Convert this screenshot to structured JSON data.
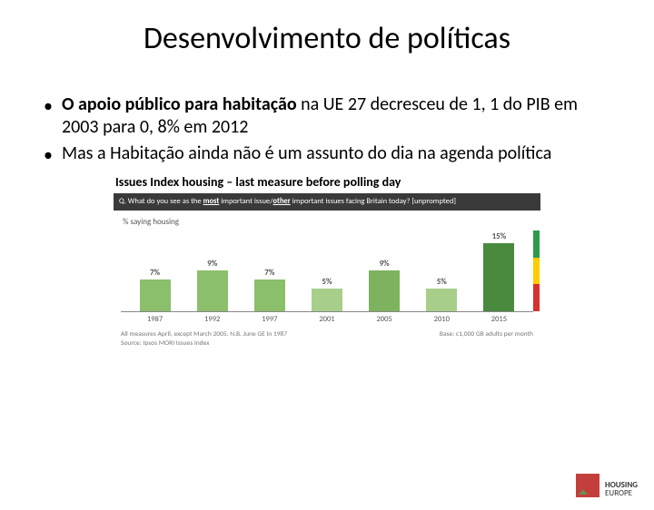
{
  "title": "Desenvolvimento de políticas",
  "bullets": {
    "b1_strong": "O apoio público para habitação",
    "b1_rest": " na UE 27 decresceu de 1, 1 do PIB em 2003 para 0, 8% em 2012",
    "b2": "Mas a Habitação ainda não é um assunto do dia na agenda política"
  },
  "chart": {
    "type": "bar",
    "heading": "Issues Index housing – last measure before polling day",
    "question_pre": "Q. What do you see as the ",
    "question_u1": "most",
    "question_mid": " important issue/",
    "question_u2": "other",
    "question_post": " important issues facing Britain today? [unprompted]",
    "ylabel": "% saying housing",
    "categories": [
      "1987",
      "1992",
      "1997",
      "2001",
      "2005",
      "2010",
      "2015"
    ],
    "values": [
      7,
      9,
      7,
      5,
      9,
      5,
      15
    ],
    "value_labels": [
      "7%",
      "9%",
      "7%",
      "5%",
      "9%",
      "5%",
      "15%"
    ],
    "bar_colors": [
      "#8bbf6b",
      "#8bbf6b",
      "#8bbf6b",
      "#a8cf8a",
      "#7db35e",
      "#a8cf8a",
      "#4a8a3f"
    ],
    "max": 16,
    "stripe_colors": [
      "#2f9b4a",
      "#ffcc00",
      "#d92f2f"
    ],
    "note_left1": "All measures April, except March 2005. N.B. June GE in 1987",
    "note_left2": "Source: Ipsos MORI Issues Index",
    "note_right": "Base: c1,000 GB adults per month",
    "qbar_bg": "#3a3a3a"
  },
  "logo": {
    "line1": "HOUSING",
    "line2": "EUROPE"
  }
}
